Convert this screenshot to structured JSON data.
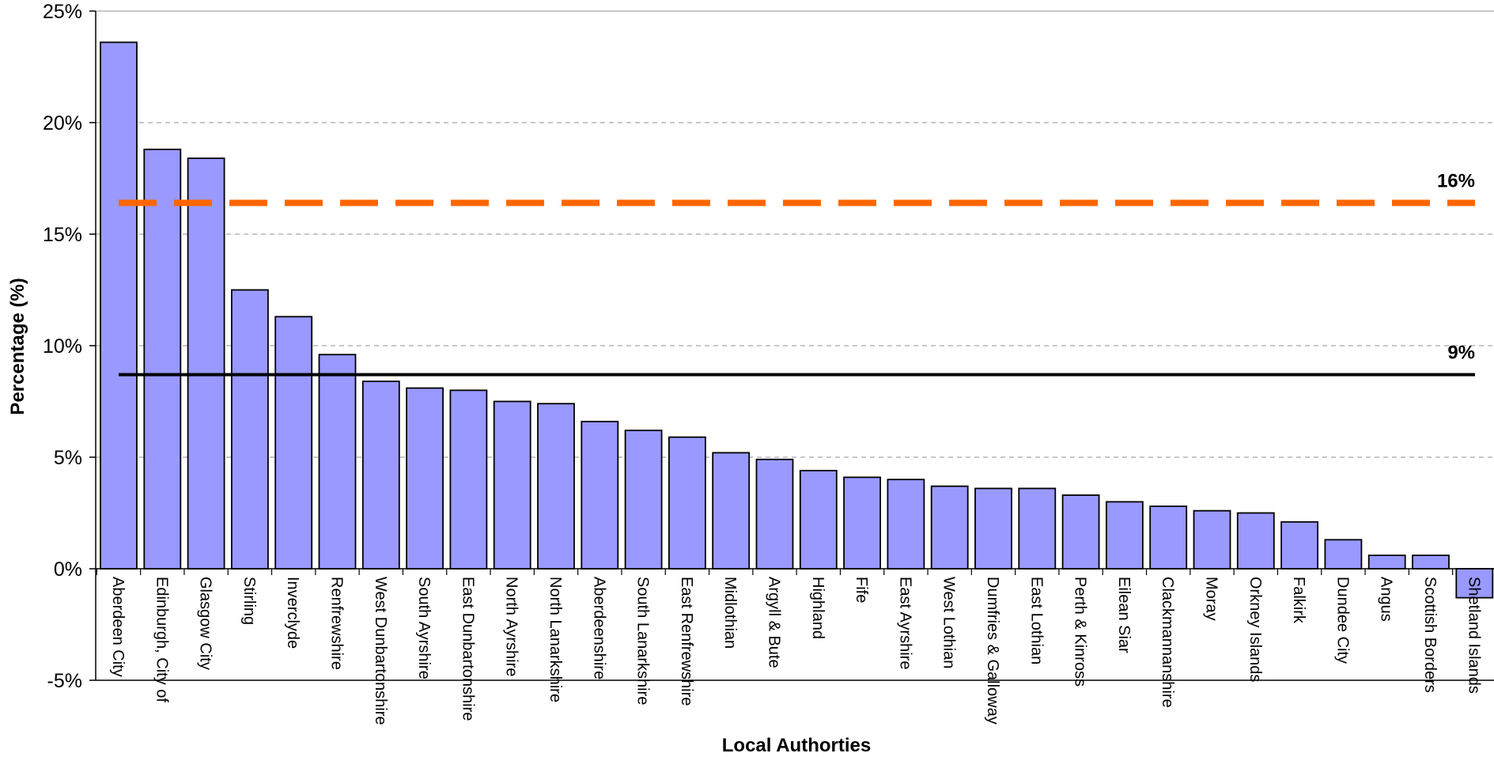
{
  "chart_data": {
    "type": "bar",
    "title": "",
    "xlabel": "Local Authorties",
    "ylabel": "Percentage (%)",
    "ylim": [
      -5,
      25
    ],
    "yticks": [
      -5,
      0,
      5,
      10,
      15,
      20,
      25
    ],
    "ytick_labels": [
      "-5%",
      "0%",
      "5%",
      "10%",
      "15%",
      "20%",
      "25%"
    ],
    "grid": "horizontal dashed",
    "categories": [
      "Aberdeen City",
      "Edinburgh, City of",
      "Glasgow City",
      "Stirling",
      "Inverclyde",
      "Renfrewshire",
      "West Dunbartonshire",
      "South Ayrshire",
      "East Dunbartonshire",
      "North Ayrshire",
      "North Lanarkshire",
      "Aberdeenshire",
      "South Lanarkshire",
      "East Renfrewshire",
      "Midlothian",
      "Argyll & Bute",
      "Highland",
      "Fife",
      "East Ayrshire",
      "West Lothian",
      "Dumfries & Galloway",
      "East Lothian",
      "Perth & Kinross",
      "Eilean Siar",
      "Clackmannanshire",
      "Moray",
      "Orkney Islands",
      "Falkirk",
      "Dundee City",
      "Angus",
      "Scottish Borders",
      "Shetland Islands"
    ],
    "values": [
      23.6,
      18.8,
      18.4,
      12.5,
      11.3,
      9.6,
      8.4,
      8.1,
      8.0,
      7.5,
      7.4,
      6.6,
      6.2,
      5.9,
      5.2,
      4.9,
      4.4,
      4.1,
      4.0,
      3.7,
      3.6,
      3.6,
      3.3,
      3.0,
      2.8,
      2.6,
      2.5,
      2.1,
      1.3,
      0.6,
      0.6,
      -1.3
    ],
    "bar_color": "#9999ff",
    "reference_lines": [
      {
        "value": 16.4,
        "label": "16%",
        "color": "#ff6600",
        "style": "dashed"
      },
      {
        "value": 8.7,
        "label": "9%",
        "color": "#000000",
        "style": "solid"
      }
    ]
  }
}
